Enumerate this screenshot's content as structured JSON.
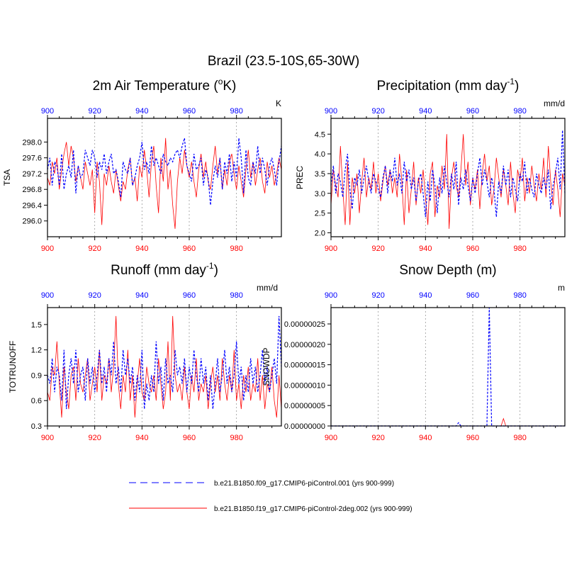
{
  "figure": {
    "title": "Brazil (23.5-10S,65-30W)",
    "colors": {
      "series1": "#0000ff",
      "series2": "#ff0000",
      "axis": "#000000",
      "grid": "#999999"
    },
    "legend": [
      {
        "label": "b.e21.B1850.f09_g17.CMIP6-piControl.001 (yrs 900-999)",
        "color": "#0000ff",
        "style": "dashed"
      },
      {
        "label": "b.e21.B1850.f19_g17.CMIP6-piControl-2deg.002 (yrs 900-999)",
        "color": "#ff0000",
        "style": "solid"
      }
    ]
  },
  "chart_data": [
    {
      "type": "line",
      "title": "2m Air Temperature (",
      "title_sup": "o",
      "title_tail": "K)",
      "units": "K",
      "ylabel": "TSA",
      "xlim": [
        900,
        999
      ],
      "ylim": [
        295.6,
        298.6
      ],
      "xticks": [
        900,
        920,
        940,
        960,
        980
      ],
      "xtick_labels": [
        "900",
        "920",
        "940",
        "960",
        "980"
      ],
      "yticks": [
        296.0,
        296.4,
        296.8,
        297.2,
        297.6,
        298.0
      ],
      "ytick_labels": [
        "296.0",
        "296.4",
        "296.8",
        "297.2",
        "297.6",
        "298.0"
      ],
      "series": [
        {
          "name": "b.e21.B1850.f09_g17.CMIP6-piControl.001",
          "color": "#0000ff",
          "dash": "3,2",
          "x_start": 900,
          "values": [
            297.3,
            297.6,
            296.9,
            297.5,
            297.4,
            296.9,
            297.7,
            296.8,
            297.2,
            297.4,
            297.1,
            297.8,
            296.7,
            297.4,
            297.1,
            297.2,
            297.8,
            297.6,
            297.4,
            297.8,
            297.6,
            297.1,
            297.5,
            297.3,
            297.7,
            297.2,
            297.5,
            297.7,
            297.2,
            297.3,
            297.0,
            296.6,
            297.5,
            297.3,
            297.2,
            297.6,
            296.9,
            297.1,
            297.4,
            297.6,
            298.0,
            297.3,
            297.5,
            297.2,
            297.9,
            297.4,
            297.6,
            297.4,
            297.2,
            297.7,
            297.5,
            297.4,
            297.6,
            297.5,
            297.7,
            297.8,
            297.6,
            297.9,
            298.1,
            297.4,
            297.2,
            297.0,
            297.7,
            297.3,
            297.4,
            297.6,
            296.9,
            297.3,
            297.1,
            296.4,
            297.0,
            297.4,
            297.1,
            297.6,
            296.8,
            297.5,
            297.2,
            297.7,
            297.0,
            297.5,
            297.1,
            298.1,
            297.6,
            296.7,
            297.8,
            297.1,
            296.9,
            297.5,
            297.2,
            297.9,
            297.2,
            297.6,
            297.3,
            296.9,
            297.4,
            297.6,
            297.3,
            296.9,
            297.5,
            297.9
          ]
        },
        {
          "name": "b.e21.B1850.f19_g17.CMIP6-piControl-2deg.002",
          "color": "#ff0000",
          "dash": "",
          "x_start": 900,
          "values": [
            297.1,
            296.9,
            297.5,
            297.2,
            297.6,
            296.8,
            297.3,
            297.7,
            298.0,
            297.4,
            297.9,
            297.6,
            297.0,
            297.4,
            297.1,
            296.8,
            297.5,
            297.2,
            296.9,
            297.3,
            296.2,
            297.5,
            297.0,
            295.9,
            297.2,
            296.9,
            297.4,
            297.0,
            296.7,
            297.3,
            296.9,
            296.5,
            297.0,
            296.8,
            297.3,
            297.6,
            296.9,
            297.1,
            296.5,
            297.4,
            297.1,
            297.8,
            297.3,
            296.6,
            297.5,
            297.9,
            296.9,
            296.2,
            297.6,
            297.0,
            298.1,
            296.8,
            297.3,
            296.4,
            295.8,
            297.0,
            297.6,
            297.2,
            297.8,
            297.4,
            297.1,
            297.5,
            297.0,
            296.6,
            297.3,
            297.7,
            297.1,
            297.5,
            297.0,
            296.8,
            297.4,
            297.9,
            297.2,
            297.6,
            296.8,
            297.3,
            296.9,
            297.5,
            297.7,
            297.2,
            296.8,
            297.4,
            297.0,
            296.6,
            297.3,
            297.8,
            297.1,
            297.5,
            296.9,
            297.3,
            297.6,
            297.0,
            296.7,
            297.5,
            297.1,
            297.4,
            296.9,
            297.2,
            297.6,
            297.3
          ]
        }
      ]
    },
    {
      "type": "line",
      "title": "Precipitation (mm day",
      "title_sup": "-1",
      "title_tail": ")",
      "units": "mm/d",
      "ylabel": "PREC",
      "xlim": [
        900,
        999
      ],
      "ylim": [
        1.9,
        4.9
      ],
      "xticks": [
        900,
        920,
        940,
        960,
        980
      ],
      "xtick_labels": [
        "900",
        "920",
        "940",
        "960",
        "980"
      ],
      "yticks": [
        2.0,
        2.5,
        3.0,
        3.5,
        4.0,
        4.5
      ],
      "ytick_labels": [
        "2.0",
        "2.5",
        "3.0",
        "3.5",
        "4.0",
        "4.5"
      ],
      "series": [
        {
          "name": "b.e21.B1850.f09_g17.CMIP6-piControl.001",
          "color": "#0000ff",
          "dash": "3,2",
          "x_start": 900,
          "values": [
            3.2,
            3.7,
            3.0,
            3.5,
            3.3,
            2.9,
            3.6,
            4.0,
            3.1,
            2.6,
            3.4,
            3.2,
            3.6,
            3.0,
            3.4,
            3.7,
            3.3,
            3.0,
            3.5,
            3.3,
            3.1,
            2.9,
            3.4,
            3.7,
            3.0,
            3.6,
            3.3,
            3.9,
            3.2,
            3.5,
            3.0,
            3.8,
            3.3,
            3.6,
            3.1,
            3.4,
            2.8,
            3.3,
            3.5,
            3.0,
            2.4,
            3.3,
            2.8,
            3.6,
            3.2,
            2.5,
            3.4,
            3.0,
            3.7,
            3.3,
            2.9,
            3.5,
            3.1,
            3.8,
            2.7,
            3.4,
            3.1,
            3.6,
            3.2,
            2.8,
            3.4,
            3.0,
            3.5,
            3.9,
            3.2,
            3.6,
            3.3,
            2.9,
            3.4,
            3.1,
            2.4,
            3.3,
            3.0,
            3.7,
            3.2,
            3.6,
            2.9,
            3.4,
            3.1,
            2.8,
            3.5,
            3.3,
            3.8,
            3.0,
            3.4,
            3.1,
            2.9,
            3.5,
            3.2,
            3.0,
            3.4,
            3.1,
            3.6,
            2.6,
            3.2,
            3.5,
            3.9,
            3.1,
            4.6,
            3.0
          ]
        },
        {
          "name": "b.e21.B1850.f19_g17.CMIP6-piControl-2deg.002",
          "color": "#ff0000",
          "dash": "",
          "x_start": 900,
          "values": [
            2.7,
            3.6,
            3.2,
            2.9,
            4.2,
            3.1,
            2.2,
            3.8,
            2.2,
            3.4,
            3.0,
            3.5,
            2.5,
            3.3,
            3.9,
            2.9,
            3.4,
            3.1,
            3.8,
            3.0,
            3.5,
            2.8,
            3.3,
            3.7,
            3.2,
            3.6,
            3.0,
            3.4,
            2.9,
            4.0,
            3.3,
            2.2,
            3.6,
            2.5,
            3.1,
            3.8,
            2.7,
            3.4,
            3.0,
            3.6,
            2.9,
            2.2,
            3.5,
            3.8,
            2.4,
            3.2,
            2.9,
            3.7,
            3.1,
            4.5,
            2.1,
            3.4,
            3.8,
            3.2,
            2.9,
            3.6,
            4.5,
            3.2,
            3.8,
            2.7,
            3.4,
            3.1,
            3.6,
            2.6,
            3.5,
            4.0,
            3.3,
            3.7,
            2.7,
            3.1,
            3.9,
            3.4,
            2.9,
            3.6,
            3.2,
            2.7,
            3.8,
            3.0,
            2.5,
            3.6,
            3.3,
            3.9,
            2.8,
            3.4,
            3.0,
            3.7,
            3.2,
            2.8,
            3.5,
            3.1,
            3.9,
            2.9,
            4.2,
            3.3,
            2.7,
            3.6,
            3.1,
            2.4,
            3.5,
            3.2
          ]
        }
      ]
    },
    {
      "type": "line",
      "title": "Runoff (mm day",
      "title_sup": "-1",
      "title_tail": ")",
      "units": "mm/d",
      "ylabel": "TOTRUNOFF",
      "xlim": [
        900,
        999
      ],
      "ylim": [
        0.3,
        1.7
      ],
      "xticks": [
        900,
        920,
        940,
        960,
        980
      ],
      "xtick_labels": [
        "900",
        "920",
        "940",
        "960",
        "980"
      ],
      "yticks": [
        0.3,
        0.6,
        0.9,
        1.2,
        1.5
      ],
      "ytick_labels": [
        "0.3",
        "0.6",
        "0.9",
        "1.2",
        "1.5"
      ],
      "series": [
        {
          "name": "b.e21.B1850.f09_g17.CMIP6-piControl.001",
          "color": "#0000ff",
          "dash": "3,2",
          "x_start": 900,
          "values": [
            0.9,
            0.8,
            1.1,
            0.7,
            1.0,
            0.9,
            0.6,
            1.2,
            0.5,
            0.9,
            1.1,
            0.8,
            1.2,
            0.7,
            0.9,
            1.0,
            0.6,
            1.1,
            0.8,
            1.0,
            0.7,
            0.9,
            1.2,
            0.8,
            1.0,
            0.7,
            1.1,
            0.9,
            1.3,
            0.8,
            1.0,
            0.7,
            1.2,
            0.9,
            1.1,
            0.8,
            1.0,
            0.6,
            0.9,
            0.7,
            1.2,
            0.5,
            0.8,
            0.6,
            0.9,
            0.7,
            1.3,
            0.8,
            1.0,
            0.6,
            1.1,
            0.8,
            0.9,
            0.7,
            1.2,
            0.9,
            1.0,
            0.8,
            1.1,
            0.7,
            1.0,
            0.8,
            1.2,
            0.9,
            0.7,
            1.1,
            0.8,
            1.0,
            0.6,
            0.9,
            0.5,
            0.8,
            1.1,
            0.7,
            0.9,
            1.2,
            0.8,
            1.0,
            0.7,
            0.9,
            1.3,
            0.8,
            1.0,
            0.6,
            0.9,
            0.7,
            1.1,
            0.8,
            1.0,
            0.7,
            0.9,
            1.2,
            0.8,
            1.0,
            0.7,
            0.9,
            1.1,
            0.8,
            1.6,
            1.0
          ]
        },
        {
          "name": "b.e21.B1850.f19_g17.CMIP6-piControl-2deg.002",
          "color": "#ff0000",
          "dash": "",
          "x_start": 900,
          "values": [
            0.7,
            0.6,
            1.0,
            0.9,
            1.3,
            0.8,
            0.4,
            1.0,
            0.7,
            0.5,
            0.9,
            1.0,
            0.6,
            1.1,
            0.8,
            0.7,
            0.9,
            1.1,
            0.6,
            0.8,
            1.0,
            0.7,
            1.2,
            0.6,
            0.9,
            0.8,
            1.1,
            0.7,
            1.0,
            1.6,
            0.8,
            0.5,
            0.9,
            0.7,
            1.2,
            0.6,
            0.9,
            0.4,
            0.8,
            1.1,
            0.7,
            0.6,
            1.0,
            0.8,
            0.7,
            0.9,
            0.6,
            1.1,
            0.8,
            0.5,
            0.7,
            1.3,
            0.6,
            1.6,
            0.9,
            0.7,
            0.8,
            0.6,
            1.0,
            0.7,
            0.5,
            0.9,
            0.7,
            1.1,
            0.6,
            0.8,
            0.7,
            0.9,
            0.5,
            0.8,
            1.0,
            0.7,
            0.9,
            0.6,
            1.1,
            0.8,
            0.6,
            0.9,
            0.7,
            1.2,
            0.6,
            0.8,
            0.5,
            0.9,
            0.7,
            1.0,
            0.6,
            0.8,
            0.7,
            1.1,
            0.6,
            0.9,
            0.5,
            0.8,
            0.7,
            1.0,
            0.6,
            0.4,
            0.9,
            0.5
          ]
        }
      ]
    },
    {
      "type": "line",
      "title": "Snow Depth (m)",
      "title_sup": "",
      "title_tail": "",
      "units": "m",
      "ylabel": "SNOWDP",
      "xlim": [
        900,
        999
      ],
      "ylim": [
        0,
        2.9e-07
      ],
      "xticks": [
        900,
        920,
        940,
        960,
        980
      ],
      "xtick_labels": [
        "900",
        "920",
        "940",
        "960",
        "980"
      ],
      "yticks": [
        0,
        5e-08,
        1e-07,
        1.5e-07,
        2e-07,
        2.5e-07
      ],
      "ytick_labels": [
        "0.00000000",
        "0.00000005",
        "0.00000010",
        "0.00000015",
        "0.00000020",
        "0.00000025"
      ],
      "series": [
        {
          "name": "b.e21.B1850.f09_g17.CMIP6-piControl.001",
          "color": "#0000ff",
          "dash": "3,2",
          "x_start": 900,
          "values": [
            0,
            0,
            0,
            0,
            0,
            0,
            0,
            0,
            0,
            0,
            0,
            0,
            0,
            0,
            0,
            0,
            0,
            0,
            0,
            0,
            0,
            0,
            0,
            0,
            0,
            0,
            0,
            0,
            0,
            0,
            0,
            0,
            0,
            0,
            0,
            0,
            0,
            0,
            0,
            0,
            0,
            0,
            0,
            0,
            0,
            0,
            0,
            0,
            0,
            0,
            0,
            0,
            0,
            0,
            8e-09,
            0,
            0,
            0,
            0,
            0,
            0,
            0,
            0,
            0,
            0,
            0,
            0,
            2.9e-07,
            0,
            0,
            0,
            0,
            0,
            0,
            0,
            0,
            0,
            0,
            0,
            0,
            0,
            0,
            0,
            0,
            0,
            0,
            0,
            0,
            0,
            0,
            0,
            0,
            0,
            0,
            0,
            0,
            0,
            0,
            0,
            0
          ]
        },
        {
          "name": "b.e21.B1850.f19_g17.CMIP6-piControl-2deg.002",
          "color": "#ff0000",
          "dash": "",
          "x_start": 900,
          "values": [
            0,
            0,
            0,
            0,
            0,
            0,
            0,
            0,
            0,
            0,
            0,
            0,
            0,
            0,
            0,
            0,
            0,
            0,
            0,
            0,
            0,
            0,
            0,
            0,
            0,
            0,
            0,
            0,
            0,
            0,
            0,
            0,
            0,
            0,
            0,
            0,
            0,
            0,
            0,
            0,
            0,
            0,
            0,
            0,
            0,
            0,
            0,
            0,
            0,
            0,
            0,
            0,
            0,
            0,
            0,
            0,
            0,
            0,
            0,
            0,
            0,
            0,
            0,
            0,
            0,
            0,
            0,
            0,
            0,
            0,
            0,
            0,
            0,
            1.8e-08,
            0,
            0,
            0,
            0,
            0,
            0,
            0,
            0,
            0,
            0,
            0,
            0,
            0,
            0,
            0,
            0,
            0,
            0,
            0,
            0,
            0,
            0,
            0,
            0,
            0,
            0
          ]
        }
      ]
    }
  ]
}
